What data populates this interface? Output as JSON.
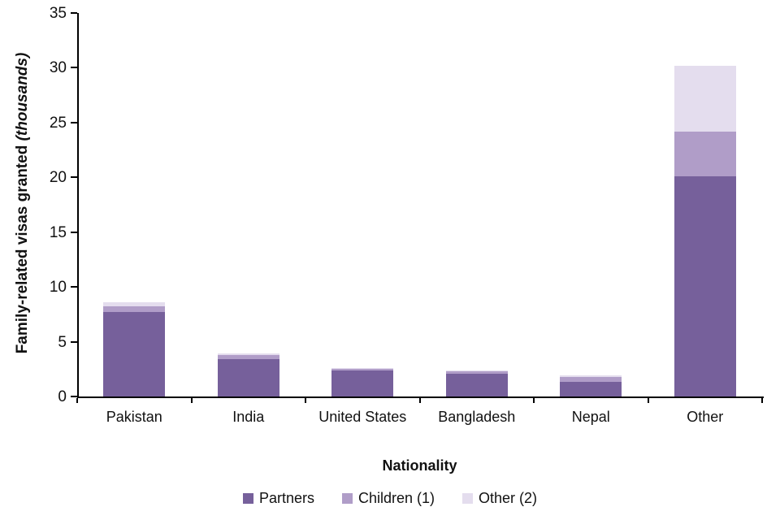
{
  "chart_data": {
    "type": "bar",
    "stacked": true,
    "title": "",
    "xlabel": "Nationality",
    "ylabel": "Family-related visas granted",
    "ylabel_suffix": "(thousands)",
    "ylim": [
      0,
      35
    ],
    "ytick_step": 5,
    "grid": false,
    "legend_position": "bottom",
    "categories": [
      "Pakistan",
      "India",
      "United States",
      "Bangladesh",
      "Nepal",
      "Other"
    ],
    "series": [
      {
        "name": "Partners",
        "color": "#76609B",
        "values": [
          7.7,
          3.4,
          2.4,
          2.1,
          1.3,
          20.1
        ]
      },
      {
        "name": "Children (1)",
        "color": "#B09DC8",
        "values": [
          0.5,
          0.4,
          0.15,
          0.2,
          0.5,
          4.1
        ]
      },
      {
        "name": "Other (2)",
        "color": "#E4DDEE",
        "values": [
          0.4,
          0.1,
          0.05,
          0.05,
          0.1,
          6.0
        ]
      }
    ]
  }
}
